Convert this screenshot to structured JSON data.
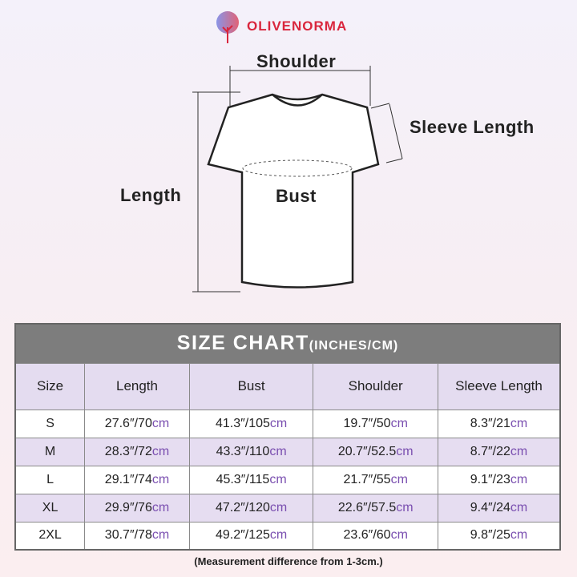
{
  "brand": {
    "name": "OLIVENORMA",
    "color": "#d9263d"
  },
  "diagram": {
    "shoulder": "Shoulder",
    "sleeve": "Sleeve Length",
    "length": "Length",
    "bust": "Bust"
  },
  "table": {
    "title": "SIZE CHART",
    "title_units": "(INCHES/CM)",
    "columns": [
      "Size",
      "Length",
      "Bust",
      "Shoulder",
      "Sleeve Length"
    ],
    "rows": [
      {
        "size": "S",
        "cells": [
          [
            "27.6″/70",
            "cm"
          ],
          [
            "41.3″/105",
            "cm"
          ],
          [
            "19.7″/50",
            "cm"
          ],
          [
            "8.3″/21",
            "cm"
          ]
        ]
      },
      {
        "size": "M",
        "cells": [
          [
            "28.3″/72",
            "cm"
          ],
          [
            "43.3″/110",
            "cm"
          ],
          [
            "20.7″/52.5",
            "cm"
          ],
          [
            "8.7″/22",
            "cm"
          ]
        ]
      },
      {
        "size": "L",
        "cells": [
          [
            "29.1″/74",
            "cm"
          ],
          [
            "45.3″/115",
            "cm"
          ],
          [
            "21.7″/55",
            "cm"
          ],
          [
            "9.1″/23",
            "cm"
          ]
        ]
      },
      {
        "size": "XL",
        "cells": [
          [
            "29.9″/76",
            "cm"
          ],
          [
            "47.2″/120",
            "cm"
          ],
          [
            "22.6″/57.5",
            "cm"
          ],
          [
            "9.4″/24",
            "cm"
          ]
        ]
      },
      {
        "size": "2XL",
        "cells": [
          [
            "30.7″/78",
            "cm"
          ],
          [
            "49.2″/125",
            "cm"
          ],
          [
            "23.6″/60",
            "cm"
          ],
          [
            "9.8″/25",
            "cm"
          ]
        ]
      }
    ]
  },
  "note": "(Measurement difference from 1-3cm.)",
  "colors": {
    "header": "#7d7d7d",
    "lavender": "#e6ddf1",
    "cm": "#7a4fb0"
  }
}
